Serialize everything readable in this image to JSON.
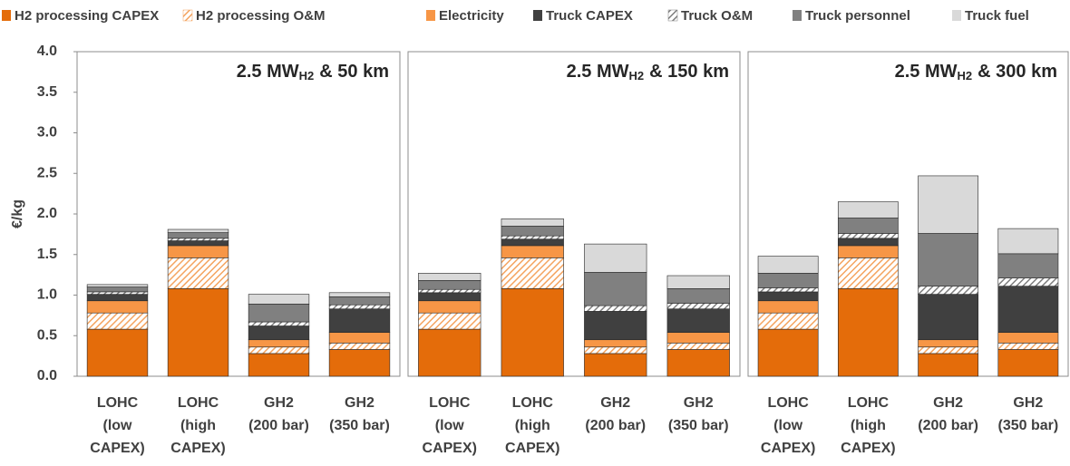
{
  "chart_data": [
    {
      "type": "bar",
      "stacked": true,
      "ylabel": "€/kg",
      "title": {
        "main": "2.5 MW",
        "sub": "H2",
        "suffix": "& 50 km"
      },
      "categories": [
        [
          "LOHC",
          "(low",
          "CAPEX)"
        ],
        [
          "LOHC",
          "(high",
          "CAPEX)"
        ],
        [
          "GH2",
          "(200 bar)"
        ],
        [
          "GH2",
          "(350 bar)"
        ]
      ],
      "ylim": [
        0,
        4
      ],
      "yticks": [
        {
          "value": 0,
          "label": "0.0"
        },
        {
          "value": 0.5,
          "label": "0.5"
        },
        {
          "value": 1,
          "label": "1.0"
        },
        {
          "value": 1.5,
          "label": "1.5"
        },
        {
          "value": 2,
          "label": "2.0"
        },
        {
          "value": 2.5,
          "label": "2.5"
        },
        {
          "value": 3,
          "label": "3.0"
        },
        {
          "value": 3.5,
          "label": "3.5"
        },
        {
          "value": 4,
          "label": "4.0"
        }
      ],
      "series": [
        {
          "name": "H2 processing CAPEX",
          "color": "#e46c0a",
          "values": [
            0.58,
            1.08,
            0.28,
            0.33
          ]
        },
        {
          "name": "H2 processing O&M",
          "color": "#f4a460",
          "pattern": "hatch",
          "values": [
            0.2,
            0.38,
            0.08,
            0.08
          ]
        },
        {
          "name": "Electricity",
          "color": "#f79646",
          "values": [
            0.15,
            0.15,
            0.09,
            0.13
          ]
        },
        {
          "name": "Truck CAPEX",
          "color": "#404040",
          "values": [
            0.08,
            0.06,
            0.17,
            0.29
          ]
        },
        {
          "name": "Truck O&M",
          "color": "#7f7f7f",
          "pattern": "hatch",
          "values": [
            0.03,
            0.03,
            0.05,
            0.05
          ]
        },
        {
          "name": "Truck personnel",
          "color": "#808080",
          "values": [
            0.06,
            0.07,
            0.22,
            0.1
          ]
        },
        {
          "name": "Truck fuel",
          "color": "#d9d9d9",
          "values": [
            0.03,
            0.04,
            0.12,
            0.05
          ]
        }
      ]
    },
    {
      "type": "bar",
      "stacked": true,
      "title": {
        "main": "2.5 MW",
        "sub": "H2",
        "suffix": "& 150 km"
      },
      "categories": [
        [
          "LOHC",
          "(low",
          "CAPEX)"
        ],
        [
          "LOHC",
          "(high",
          "CAPEX)"
        ],
        [
          "GH2",
          "(200 bar)"
        ],
        [
          "GH2",
          "(350 bar)"
        ]
      ],
      "ylim": [
        0,
        4
      ],
      "series": [
        {
          "name": "H2 processing CAPEX",
          "color": "#e46c0a",
          "values": [
            0.58,
            1.08,
            0.28,
            0.33
          ]
        },
        {
          "name": "H2 processing O&M",
          "color": "#f4a460",
          "pattern": "hatch",
          "values": [
            0.2,
            0.38,
            0.08,
            0.08
          ]
        },
        {
          "name": "Electricity",
          "color": "#f79646",
          "values": [
            0.15,
            0.15,
            0.09,
            0.13
          ]
        },
        {
          "name": "Truck CAPEX",
          "color": "#404040",
          "values": [
            0.1,
            0.08,
            0.35,
            0.29
          ]
        },
        {
          "name": "Truck O&M",
          "color": "#7f7f7f",
          "pattern": "hatch",
          "values": [
            0.04,
            0.04,
            0.07,
            0.07
          ]
        },
        {
          "name": "Truck personnel",
          "color": "#808080",
          "values": [
            0.11,
            0.12,
            0.41,
            0.18
          ]
        },
        {
          "name": "Truck fuel",
          "color": "#d9d9d9",
          "values": [
            0.09,
            0.09,
            0.35,
            0.16
          ]
        }
      ]
    },
    {
      "type": "bar",
      "stacked": true,
      "title": {
        "main": "2.5 MW",
        "sub": "H2",
        "suffix": "& 300 km"
      },
      "categories": [
        [
          "LOHC",
          "(low",
          "CAPEX)"
        ],
        [
          "LOHC",
          "(high",
          "CAPEX)"
        ],
        [
          "GH2",
          "(200 bar)"
        ],
        [
          "GH2",
          "(350 bar)"
        ]
      ],
      "ylim": [
        0,
        4
      ],
      "series": [
        {
          "name": "H2 processing CAPEX",
          "color": "#e46c0a",
          "values": [
            0.58,
            1.08,
            0.28,
            0.33
          ]
        },
        {
          "name": "H2 processing O&M",
          "color": "#f4a460",
          "pattern": "hatch",
          "values": [
            0.2,
            0.38,
            0.08,
            0.08
          ]
        },
        {
          "name": "Electricity",
          "color": "#f79646",
          "values": [
            0.15,
            0.15,
            0.09,
            0.13
          ]
        },
        {
          "name": "Truck CAPEX",
          "color": "#404040",
          "values": [
            0.11,
            0.09,
            0.56,
            0.57
          ]
        },
        {
          "name": "Truck O&M",
          "color": "#7f7f7f",
          "pattern": "hatch",
          "values": [
            0.05,
            0.06,
            0.1,
            0.1
          ]
        },
        {
          "name": "Truck personnel",
          "color": "#808080",
          "values": [
            0.18,
            0.19,
            0.65,
            0.3
          ]
        },
        {
          "name": "Truck fuel",
          "color": "#d9d9d9",
          "values": [
            0.21,
            0.2,
            0.71,
            0.31
          ]
        }
      ]
    }
  ]
}
